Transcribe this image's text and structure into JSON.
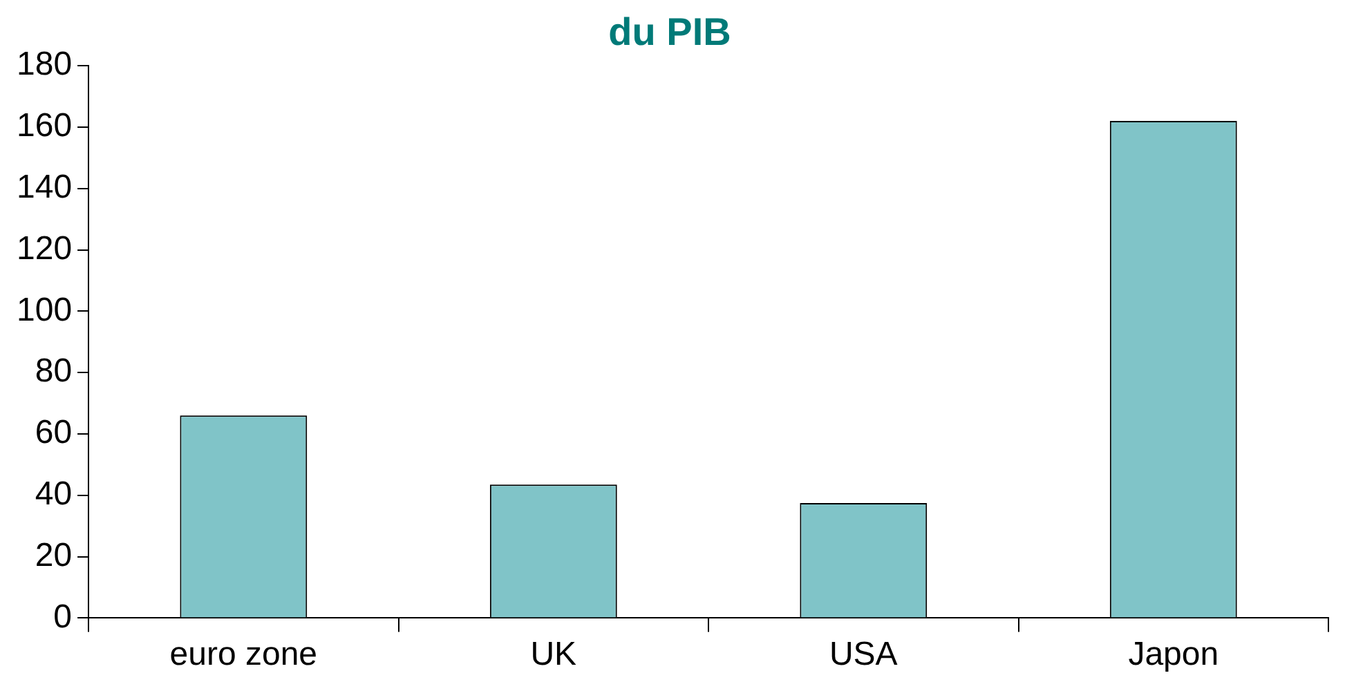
{
  "chart_data": {
    "type": "bar",
    "title": "du PIB",
    "categories": [
      "euro zone",
      "UK",
      "USA",
      "Japon"
    ],
    "values": [
      66,
      43.5,
      37.5,
      162
    ],
    "color": "#80c4c8",
    "ylim": [
      0,
      180
    ],
    "yticks": [
      0,
      20,
      40,
      60,
      80,
      100,
      120,
      140,
      160,
      180
    ],
    "grid": false,
    "legend": false
  }
}
